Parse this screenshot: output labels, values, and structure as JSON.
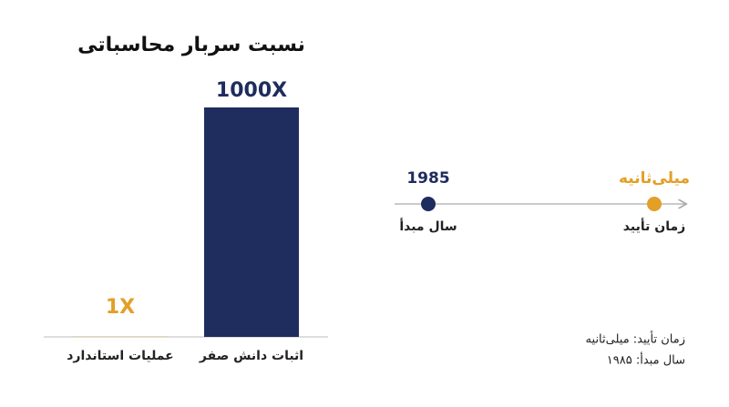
{
  "chart_data": {
    "type": "bar",
    "title": "نسبت سربار محاسباتی",
    "categories": [
      "عملیات استاندارد",
      "اثبات دانش صفر"
    ],
    "values": [
      1,
      1000
    ],
    "value_labels": [
      "1X",
      "1000X"
    ],
    "colors": [
      "#e39f26",
      "#1e2c5e"
    ],
    "ylim": [
      0,
      1000
    ]
  },
  "timeline": {
    "points": [
      {
        "value": "1985",
        "label": "سال مبدأ",
        "color": "#1e2c5e"
      },
      {
        "value": "میلی‌ثانیه",
        "label": "زمان تأیید",
        "color": "#e39f26"
      }
    ]
  },
  "notes": [
    "زمان تأیید: میلی‌ثانیه",
    "سال مبدأ: ۱۹۸۵"
  ]
}
